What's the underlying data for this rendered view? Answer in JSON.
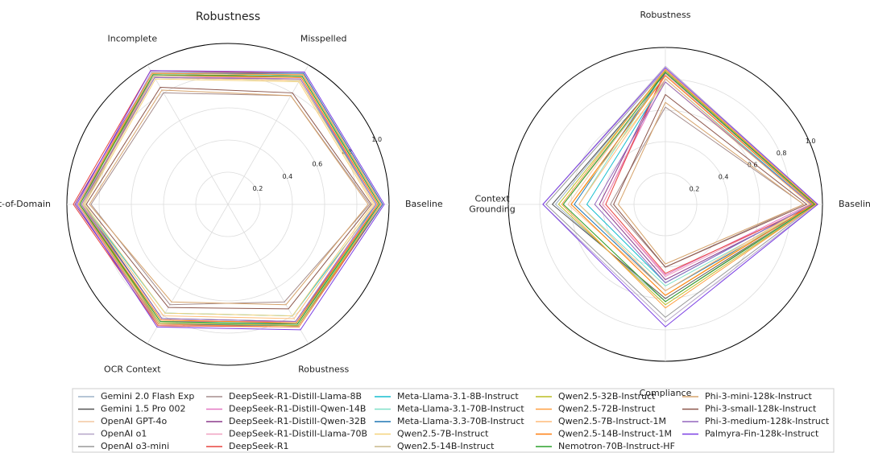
{
  "chart_data": [
    {
      "type": "radar",
      "title": "Robustness",
      "categories": [
        "Baseline",
        "Misspelled",
        "Incomplete",
        "Out-of-Domain",
        "OCR Context",
        "Robustness"
      ],
      "ylim": [
        0,
        1
      ],
      "yticks": [
        0.2,
        0.4,
        0.6,
        0.8,
        {
          "value": 1,
          "label": "1.0"
        }
      ],
      "grid": true,
      "series": [
        {
          "name": "Gemini 2.0 Flash Exp",
          "color": "#9eb3c8",
          "values": [
            0.95,
            0.93,
            0.94,
            0.92,
            0.85,
            0.85
          ]
        },
        {
          "name": "Gemini 1.5 Pro 002",
          "color": "#555555",
          "values": [
            0.94,
            0.92,
            0.93,
            0.9,
            0.82,
            0.84
          ]
        },
        {
          "name": "OpenAI GPT-4o",
          "color": "#f4c7a1",
          "values": [
            0.93,
            0.91,
            0.92,
            0.9,
            0.88,
            0.86
          ]
        },
        {
          "name": "OpenAI o1",
          "color": "#b5a5c8",
          "values": [
            0.96,
            0.94,
            0.95,
            0.91,
            0.87,
            0.88
          ]
        },
        {
          "name": "OpenAI o3-mini",
          "color": "#999999",
          "values": [
            0.94,
            0.92,
            0.93,
            0.89,
            0.86,
            0.85
          ]
        },
        {
          "name": "DeepSeek-R1-Distill-Llama-8B",
          "color": "#a58d8d",
          "values": [
            0.88,
            0.78,
            0.8,
            0.85,
            0.72,
            0.7
          ]
        },
        {
          "name": "DeepSeek-R1-Distill-Qwen-14B",
          "color": "#e377c2",
          "values": [
            0.93,
            0.9,
            0.92,
            0.93,
            0.84,
            0.84
          ]
        },
        {
          "name": "DeepSeek-R1-Distill-Qwen-32B",
          "color": "#8b3a8b",
          "values": [
            0.95,
            0.93,
            0.94,
            0.95,
            0.86,
            0.87
          ]
        },
        {
          "name": "DeepSeek-R1-Distill-Llama-70B",
          "color": "#f0a0c0",
          "values": [
            0.95,
            0.93,
            0.94,
            0.94,
            0.86,
            0.86
          ]
        },
        {
          "name": "DeepSeek-R1",
          "color": "#e8433f",
          "values": [
            0.96,
            0.94,
            0.96,
            0.96,
            0.87,
            0.88
          ]
        },
        {
          "name": "Meta-Llama-3.1-8B-Instruct",
          "color": "#17becf",
          "values": [
            0.92,
            0.89,
            0.91,
            0.9,
            0.78,
            0.8
          ]
        },
        {
          "name": "Meta-Llama-3.1-70B-Instruct",
          "color": "#7fe0c8",
          "values": [
            0.95,
            0.92,
            0.93,
            0.92,
            0.85,
            0.86
          ]
        },
        {
          "name": "Meta-Llama-3.3-70B-Instruct",
          "color": "#1f77b4",
          "values": [
            0.96,
            0.94,
            0.94,
            0.93,
            0.86,
            0.87
          ]
        },
        {
          "name": "Qwen2.5-7B-Instruct",
          "color": "#f5d27a",
          "values": [
            0.9,
            0.88,
            0.9,
            0.89,
            0.78,
            0.8
          ]
        },
        {
          "name": "Qwen2.5-14B-Instruct",
          "color": "#c9b88a",
          "values": [
            0.93,
            0.91,
            0.92,
            0.91,
            0.84,
            0.86
          ]
        },
        {
          "name": "Qwen2.5-32B-Instruct",
          "color": "#bcbd22",
          "values": [
            0.95,
            0.93,
            0.94,
            0.92,
            0.85,
            0.87
          ]
        },
        {
          "name": "Qwen2.5-72B-Instruct",
          "color": "#ff9f40",
          "values": [
            0.95,
            0.93,
            0.94,
            0.93,
            0.86,
            0.88
          ]
        },
        {
          "name": "Qwen2.5-7B-Instruct-1M",
          "color": "#ffbb78",
          "values": [
            0.91,
            0.89,
            0.91,
            0.9,
            0.8,
            0.82
          ]
        },
        {
          "name": "Qwen2.5-14B-Instruct-1M",
          "color": "#ff7f0e",
          "values": [
            0.93,
            0.91,
            0.93,
            0.92,
            0.83,
            0.85
          ]
        },
        {
          "name": "Nemotron-70B-Instruct-HF",
          "color": "#2ca02c",
          "values": [
            0.94,
            0.92,
            0.93,
            0.92,
            0.84,
            0.86
          ]
        },
        {
          "name": "Phi-3-mini-128k-Instruct",
          "color": "#d6a36b",
          "values": [
            0.87,
            0.78,
            0.82,
            0.86,
            0.7,
            0.72
          ]
        },
        {
          "name": "Phi-3-small-128k-Instruct",
          "color": "#8c564b",
          "values": [
            0.89,
            0.8,
            0.84,
            0.88,
            0.74,
            0.75
          ]
        },
        {
          "name": "Phi-3-medium-128k-Instruct",
          "color": "#9467bd",
          "values": [
            0.92,
            0.9,
            0.91,
            0.91,
            0.82,
            0.84
          ]
        },
        {
          "name": "Palmyra-Fin-128k-Instruct",
          "color": "#7b3fe4",
          "values": [
            0.97,
            0.95,
            0.96,
            0.94,
            0.88,
            0.9
          ]
        }
      ]
    },
    {
      "type": "radar",
      "categories": [
        "Baseline",
        "Robustness",
        "Context Grounding",
        "Compliance"
      ],
      "ylim": [
        0,
        1
      ],
      "yticks": [
        0.2,
        0.4,
        0.6,
        0.8,
        {
          "value": 1,
          "label": "1.0"
        }
      ],
      "grid": true,
      "series": [
        {
          "values": [
            0.96,
            0.85,
            0.7,
            0.62
          ]
        },
        {
          "values": [
            0.95,
            0.84,
            0.72,
            0.6
          ]
        },
        {
          "values": [
            0.95,
            0.86,
            0.62,
            0.55
          ]
        },
        {
          "values": [
            0.97,
            0.88,
            0.78,
            0.75
          ]
        },
        {
          "values": [
            0.96,
            0.86,
            0.76,
            0.72
          ]
        },
        {
          "values": [
            0.88,
            0.62,
            0.35,
            0.4
          ]
        },
        {
          "values": [
            0.92,
            0.8,
            0.4,
            0.45
          ]
        },
        {
          "values": [
            0.95,
            0.84,
            0.42,
            0.48
          ]
        },
        {
          "values": [
            0.94,
            0.83,
            0.4,
            0.46
          ]
        },
        {
          "values": [
            0.96,
            0.86,
            0.38,
            0.44
          ]
        },
        {
          "values": [
            0.93,
            0.8,
            0.5,
            0.5
          ]
        },
        {
          "values": [
            0.96,
            0.85,
            0.55,
            0.52
          ]
        },
        {
          "values": [
            0.96,
            0.85,
            0.58,
            0.55
          ]
        },
        {
          "values": [
            0.92,
            0.78,
            0.6,
            0.58
          ]
        },
        {
          "values": [
            0.94,
            0.82,
            0.65,
            0.62
          ]
        },
        {
          "values": [
            0.96,
            0.85,
            0.68,
            0.64
          ]
        },
        {
          "values": [
            0.96,
            0.86,
            0.66,
            0.66
          ]
        },
        {
          "values": [
            0.92,
            0.8,
            0.55,
            0.55
          ]
        },
        {
          "values": [
            0.94,
            0.82,
            0.6,
            0.58
          ]
        },
        {
          "values": [
            0.95,
            0.84,
            0.65,
            0.62
          ]
        },
        {
          "values": [
            0.88,
            0.65,
            0.3,
            0.38
          ]
        },
        {
          "values": [
            0.9,
            0.7,
            0.33,
            0.4
          ]
        },
        {
          "values": [
            0.93,
            0.78,
            0.45,
            0.5
          ]
        },
        {
          "values": [
            0.97,
            0.87,
            0.78,
            0.78
          ]
        }
      ]
    }
  ]
}
